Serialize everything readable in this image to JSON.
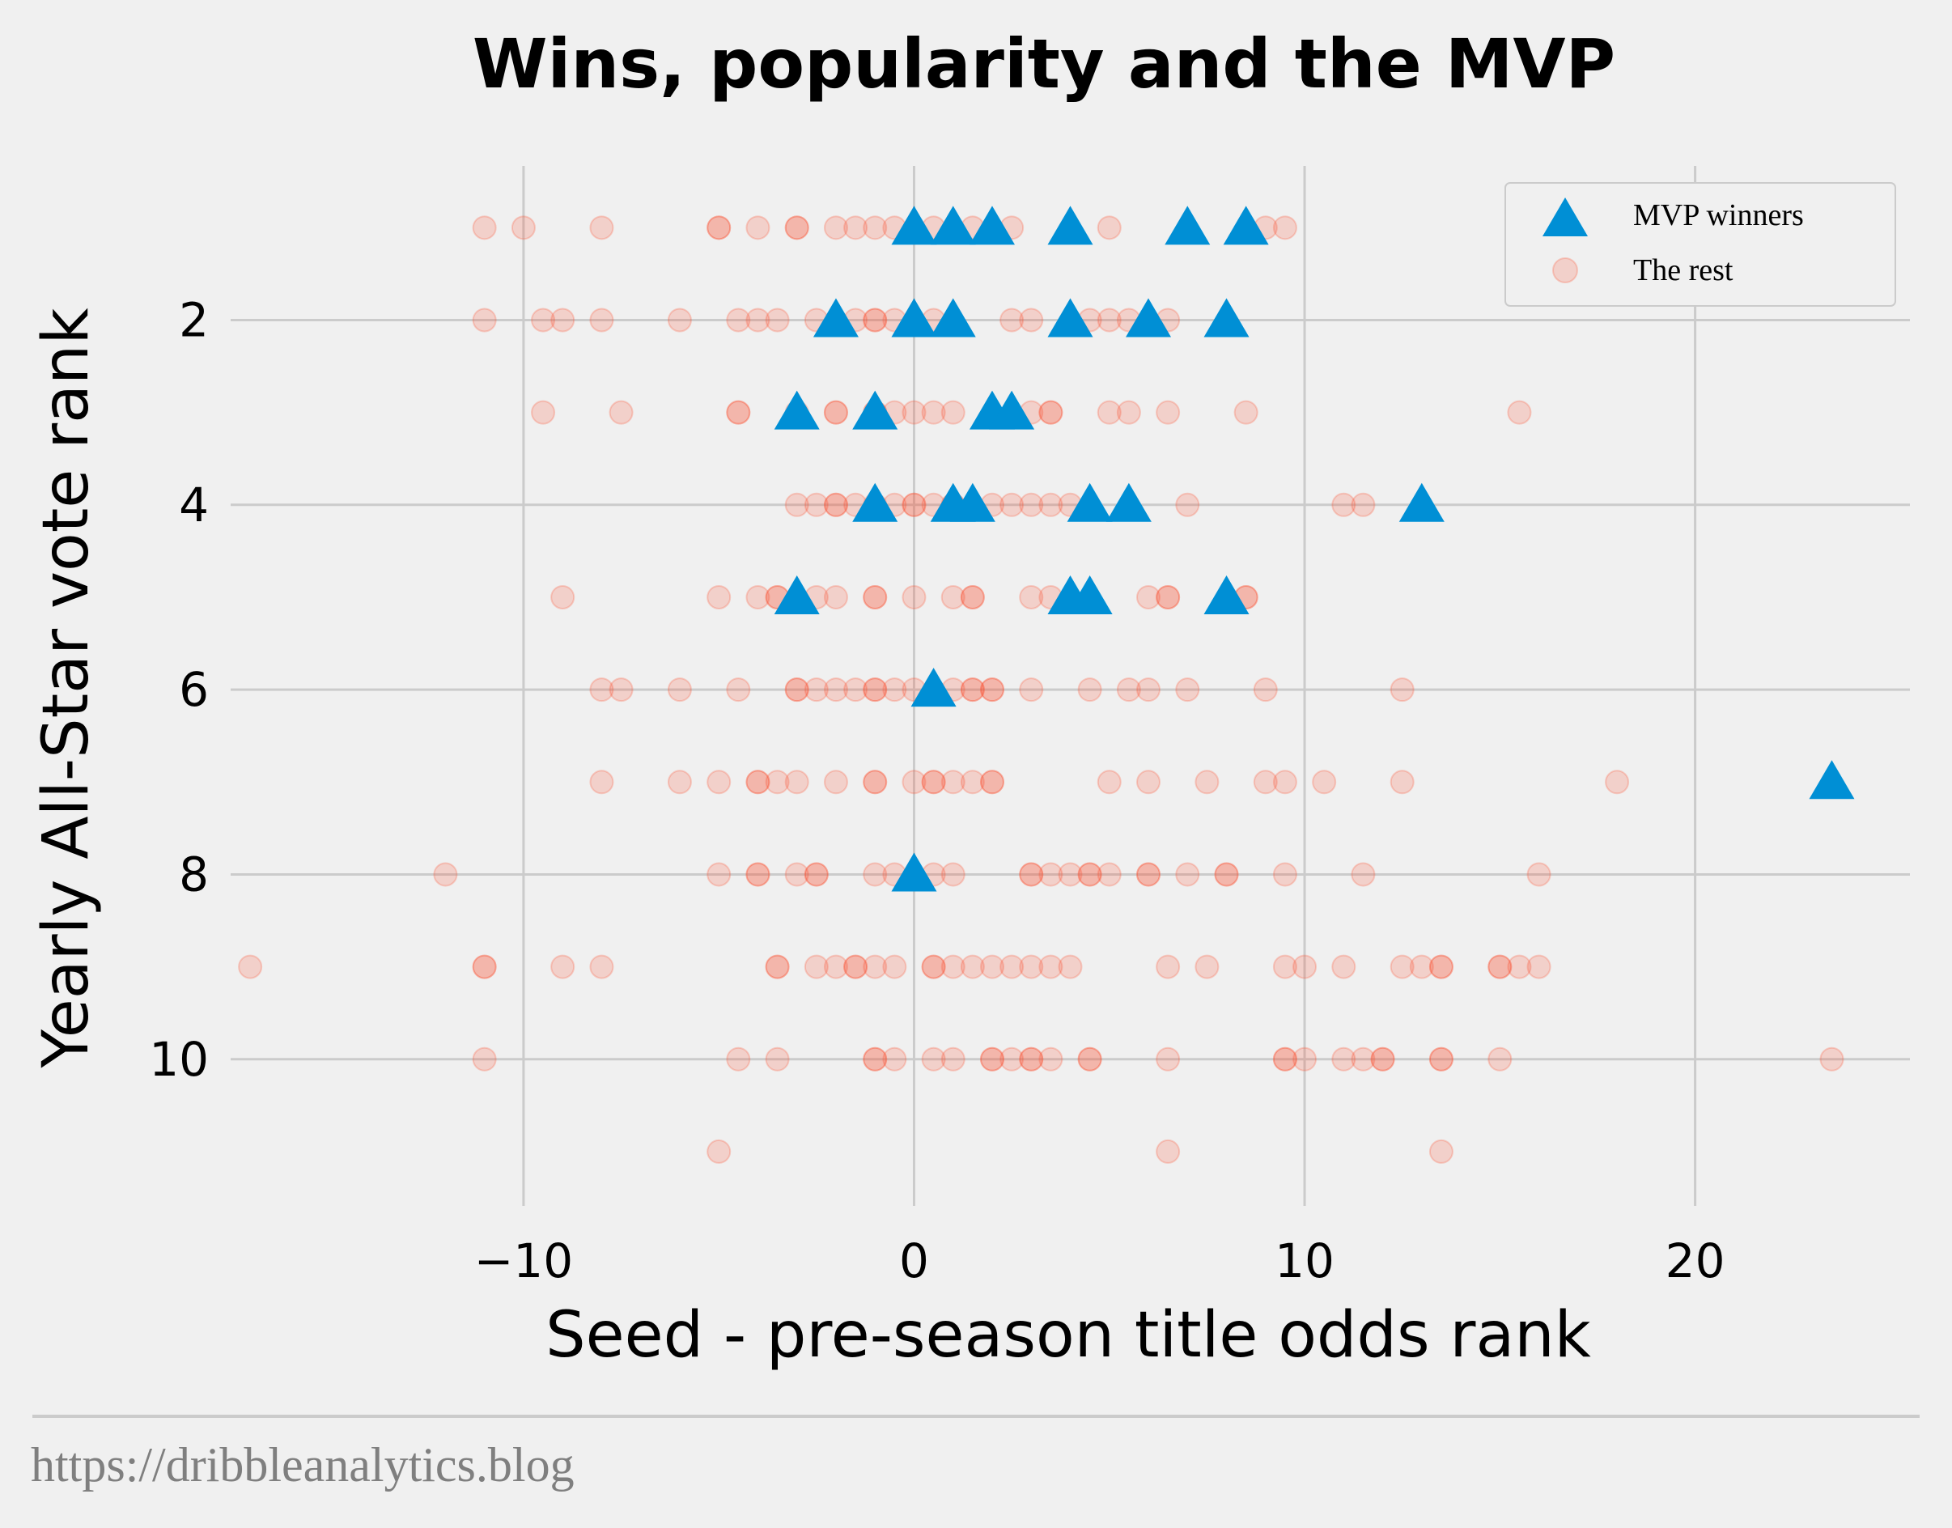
{
  "chart_data": {
    "type": "scatter",
    "title": "Wins, popularity and the MVP",
    "xlabel": "Seed - pre-season title odds rank",
    "ylabel": "Yearly All-Star vote rank",
    "xlim": [
      -17.5,
      25.5
    ],
    "ylim": [
      11.5,
      0.2
    ],
    "xticks": [
      -10,
      0,
      10,
      20
    ],
    "xtick_labels": [
      "−10",
      "0",
      "10",
      "20"
    ],
    "yticks": [
      2,
      4,
      6,
      8,
      10
    ],
    "ytick_labels": [
      "2",
      "4",
      "6",
      "8",
      "10"
    ],
    "grid": true,
    "legend_position": "top-right",
    "colors": {
      "mvp": "#008fd5",
      "rest": "#fc4f30"
    },
    "series": [
      {
        "name": "MVP winners",
        "marker": "triangle",
        "points": [
          [
            0,
            1
          ],
          [
            1,
            1
          ],
          [
            2,
            1
          ],
          [
            4,
            1
          ],
          [
            7,
            1
          ],
          [
            8.5,
            1
          ],
          [
            -2,
            2
          ],
          [
            0,
            2
          ],
          [
            1,
            2
          ],
          [
            4,
            2
          ],
          [
            6,
            2
          ],
          [
            8,
            2
          ],
          [
            -3,
            3
          ],
          [
            -1,
            3
          ],
          [
            2,
            3
          ],
          [
            2.5,
            3
          ],
          [
            -1,
            4
          ],
          [
            1,
            4
          ],
          [
            1.5,
            4
          ],
          [
            4.5,
            4
          ],
          [
            5.5,
            4
          ],
          [
            13,
            4
          ],
          [
            -3,
            5
          ],
          [
            4,
            5
          ],
          [
            4.5,
            5
          ],
          [
            8,
            5
          ],
          [
            0.5,
            6
          ],
          [
            23.5,
            7
          ],
          [
            0,
            8
          ]
        ]
      },
      {
        "name": "The rest",
        "marker": "circle",
        "points": [
          [
            -11,
            1
          ],
          [
            -10,
            1
          ],
          [
            -8,
            1
          ],
          [
            -5,
            1
          ],
          [
            -5,
            1
          ],
          [
            -4,
            1
          ],
          [
            -3,
            1
          ],
          [
            -3,
            1
          ],
          [
            -2,
            1
          ],
          [
            -1.5,
            1
          ],
          [
            -1,
            1
          ],
          [
            -0.5,
            1
          ],
          [
            0.5,
            1
          ],
          [
            1.5,
            1
          ],
          [
            2.5,
            1
          ],
          [
            5,
            1
          ],
          [
            9,
            1
          ],
          [
            9.5,
            1
          ],
          [
            -11,
            2
          ],
          [
            -9.5,
            2
          ],
          [
            -9,
            2
          ],
          [
            -8,
            2
          ],
          [
            -6,
            2
          ],
          [
            -4.5,
            2
          ],
          [
            -4,
            2
          ],
          [
            -3.5,
            2
          ],
          [
            -2.5,
            2
          ],
          [
            -1.5,
            2
          ],
          [
            -1,
            2
          ],
          [
            -1,
            2
          ],
          [
            -0.5,
            2
          ],
          [
            0.5,
            2
          ],
          [
            2.5,
            2
          ],
          [
            3,
            2
          ],
          [
            4.5,
            2
          ],
          [
            5,
            2
          ],
          [
            5.5,
            2
          ],
          [
            6.5,
            2
          ],
          [
            -9.5,
            3
          ],
          [
            -7.5,
            3
          ],
          [
            -4.5,
            3
          ],
          [
            -4.5,
            3
          ],
          [
            -3,
            3
          ],
          [
            -2,
            3
          ],
          [
            -2,
            3
          ],
          [
            -1,
            3
          ],
          [
            -1,
            3
          ],
          [
            -0.5,
            3
          ],
          [
            0,
            3
          ],
          [
            0.5,
            3
          ],
          [
            1,
            3
          ],
          [
            3,
            3
          ],
          [
            3.5,
            3
          ],
          [
            3.5,
            3
          ],
          [
            5,
            3
          ],
          [
            5.5,
            3
          ],
          [
            6.5,
            3
          ],
          [
            8.5,
            3
          ],
          [
            15.5,
            3
          ],
          [
            -3,
            4
          ],
          [
            -2.5,
            4
          ],
          [
            -2,
            4
          ],
          [
            -2,
            4
          ],
          [
            -1.5,
            4
          ],
          [
            -1,
            4
          ],
          [
            -0.5,
            4
          ],
          [
            0,
            4
          ],
          [
            0,
            4
          ],
          [
            0.5,
            4
          ],
          [
            1,
            4
          ],
          [
            1,
            4
          ],
          [
            2,
            4
          ],
          [
            2.5,
            4
          ],
          [
            3,
            4
          ],
          [
            3.5,
            4
          ],
          [
            4,
            4
          ],
          [
            7,
            4
          ],
          [
            11,
            4
          ],
          [
            11.5,
            4
          ],
          [
            -9,
            5
          ],
          [
            -5,
            5
          ],
          [
            -4,
            5
          ],
          [
            -3.5,
            5
          ],
          [
            -3.5,
            5
          ],
          [
            -2.5,
            5
          ],
          [
            -2,
            5
          ],
          [
            -1,
            5
          ],
          [
            -1,
            5
          ],
          [
            0,
            5
          ],
          [
            1,
            5
          ],
          [
            1.5,
            5
          ],
          [
            1.5,
            5
          ],
          [
            3,
            5
          ],
          [
            3.5,
            5
          ],
          [
            6,
            5
          ],
          [
            6.5,
            5
          ],
          [
            6.5,
            5
          ],
          [
            8.5,
            5
          ],
          [
            8.5,
            5
          ],
          [
            -8,
            6
          ],
          [
            -7.5,
            6
          ],
          [
            -6,
            6
          ],
          [
            -4.5,
            6
          ],
          [
            -3,
            6
          ],
          [
            -3,
            6
          ],
          [
            -2.5,
            6
          ],
          [
            -2,
            6
          ],
          [
            -1.5,
            6
          ],
          [
            -1,
            6
          ],
          [
            -1,
            6
          ],
          [
            -0.5,
            6
          ],
          [
            0,
            6
          ],
          [
            1,
            6
          ],
          [
            1.5,
            6
          ],
          [
            1.5,
            6
          ],
          [
            2,
            6
          ],
          [
            2,
            6
          ],
          [
            3,
            6
          ],
          [
            4.5,
            6
          ],
          [
            5.5,
            6
          ],
          [
            6,
            6
          ],
          [
            7,
            6
          ],
          [
            9,
            6
          ],
          [
            12.5,
            6
          ],
          [
            -8,
            7
          ],
          [
            -6,
            7
          ],
          [
            -5,
            7
          ],
          [
            -4,
            7
          ],
          [
            -4,
            7
          ],
          [
            -3.5,
            7
          ],
          [
            -3,
            7
          ],
          [
            -2,
            7
          ],
          [
            -1,
            7
          ],
          [
            -1,
            7
          ],
          [
            0,
            7
          ],
          [
            0.5,
            7
          ],
          [
            0.5,
            7
          ],
          [
            1,
            7
          ],
          [
            1.5,
            7
          ],
          [
            2,
            7
          ],
          [
            2,
            7
          ],
          [
            5,
            7
          ],
          [
            6,
            7
          ],
          [
            7.5,
            7
          ],
          [
            9,
            7
          ],
          [
            9.5,
            7
          ],
          [
            10.5,
            7
          ],
          [
            12.5,
            7
          ],
          [
            18,
            7
          ],
          [
            -12,
            8
          ],
          [
            -5,
            8
          ],
          [
            -4,
            8
          ],
          [
            -4,
            8
          ],
          [
            -3,
            8
          ],
          [
            -2.5,
            8
          ],
          [
            -2.5,
            8
          ],
          [
            -1,
            8
          ],
          [
            -0.5,
            8
          ],
          [
            0.5,
            8
          ],
          [
            1,
            8
          ],
          [
            3,
            8
          ],
          [
            3,
            8
          ],
          [
            3.5,
            8
          ],
          [
            4,
            8
          ],
          [
            4.5,
            8
          ],
          [
            4.5,
            8
          ],
          [
            5,
            8
          ],
          [
            6,
            8
          ],
          [
            6,
            8
          ],
          [
            7,
            8
          ],
          [
            8,
            8
          ],
          [
            8,
            8
          ],
          [
            9.5,
            8
          ],
          [
            11.5,
            8
          ],
          [
            16,
            8
          ],
          [
            -17,
            9
          ],
          [
            -11,
            9
          ],
          [
            -11,
            9
          ],
          [
            -9,
            9
          ],
          [
            -8,
            9
          ],
          [
            -3.5,
            9
          ],
          [
            -3.5,
            9
          ],
          [
            -2.5,
            9
          ],
          [
            -2,
            9
          ],
          [
            -1.5,
            9
          ],
          [
            -1.5,
            9
          ],
          [
            -1,
            9
          ],
          [
            -0.5,
            9
          ],
          [
            0.5,
            9
          ],
          [
            0.5,
            9
          ],
          [
            1,
            9
          ],
          [
            1.5,
            9
          ],
          [
            2,
            9
          ],
          [
            2.5,
            9
          ],
          [
            3,
            9
          ],
          [
            3.5,
            9
          ],
          [
            4,
            9
          ],
          [
            6.5,
            9
          ],
          [
            7.5,
            9
          ],
          [
            9.5,
            9
          ],
          [
            10,
            9
          ],
          [
            11,
            9
          ],
          [
            12.5,
            9
          ],
          [
            13,
            9
          ],
          [
            13.5,
            9
          ],
          [
            13.5,
            9
          ],
          [
            15,
            9
          ],
          [
            15,
            9
          ],
          [
            15.5,
            9
          ],
          [
            16,
            9
          ],
          [
            -11,
            10
          ],
          [
            -4.5,
            10
          ],
          [
            -3.5,
            10
          ],
          [
            -1,
            10
          ],
          [
            -1,
            10
          ],
          [
            -0.5,
            10
          ],
          [
            0.5,
            10
          ],
          [
            1,
            10
          ],
          [
            2,
            10
          ],
          [
            2,
            10
          ],
          [
            2.5,
            10
          ],
          [
            3,
            10
          ],
          [
            3,
            10
          ],
          [
            3.5,
            10
          ],
          [
            4.5,
            10
          ],
          [
            4.5,
            10
          ],
          [
            6.5,
            10
          ],
          [
            9.5,
            10
          ],
          [
            9.5,
            10
          ],
          [
            10,
            10
          ],
          [
            11,
            10
          ],
          [
            11.5,
            10
          ],
          [
            12,
            10
          ],
          [
            12,
            10
          ],
          [
            13.5,
            10
          ],
          [
            13.5,
            10
          ],
          [
            15,
            10
          ],
          [
            23.5,
            10
          ],
          [
            -5,
            11
          ],
          [
            6.5,
            11
          ],
          [
            13.5,
            11
          ]
        ]
      }
    ]
  },
  "footer": {
    "text": "https://dribbleanalytics.blog"
  }
}
